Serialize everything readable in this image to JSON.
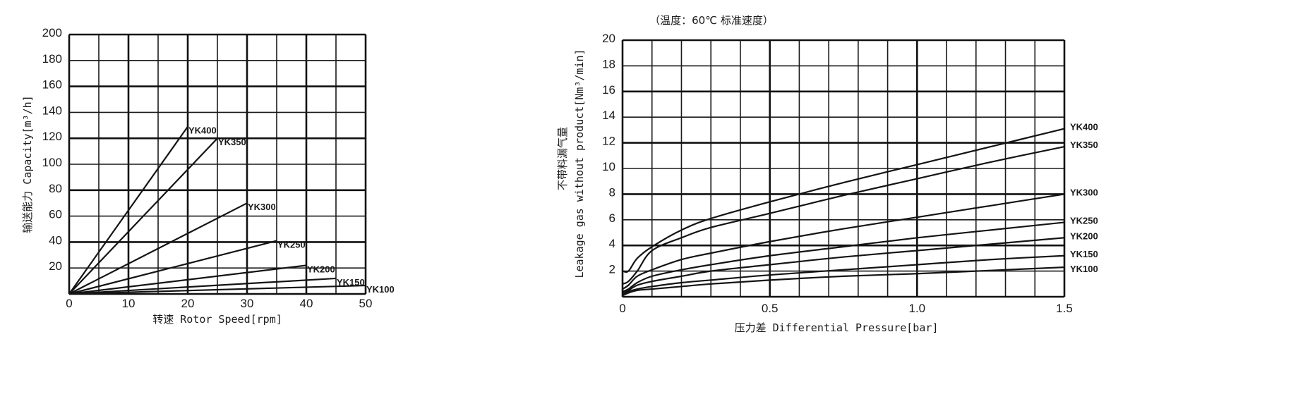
{
  "chart_data": [
    {
      "type": "line",
      "title": "",
      "xlabel": "转速 Rotor Speed[rpm]",
      "ylabel": "输送能力 Capacity[m³/h]",
      "xlim": [
        0,
        50
      ],
      "ylim": [
        0,
        200
      ],
      "xticks": [
        "0",
        "10",
        "20",
        "30",
        "40",
        "50"
      ],
      "yticks": [
        "20",
        "40",
        "60",
        "80",
        "100",
        "120",
        "140",
        "160",
        "180",
        "200"
      ],
      "grid": true,
      "series": [
        {
          "name": "YK400",
          "x": [
            0,
            20
          ],
          "y": [
            0,
            129
          ]
        },
        {
          "name": "YK350",
          "x": [
            0,
            25
          ],
          "y": [
            0,
            120
          ]
        },
        {
          "name": "YK300",
          "x": [
            0,
            30
          ],
          "y": [
            0,
            70
          ]
        },
        {
          "name": "YK250",
          "x": [
            0,
            35
          ],
          "y": [
            0,
            41
          ]
        },
        {
          "name": "YK200",
          "x": [
            0,
            40
          ],
          "y": [
            0,
            22
          ]
        },
        {
          "name": "YK150",
          "x": [
            0,
            45
          ],
          "y": [
            0,
            12
          ]
        },
        {
          "name": "YK100",
          "x": [
            0,
            50
          ],
          "y": [
            0,
            6.5
          ]
        }
      ]
    },
    {
      "type": "line",
      "title": "（温度：60℃ 标准速度）",
      "xlabel": "压力差 Differential Pressure[bar]",
      "ylabel_cn": "不带料漏气量",
      "ylabel": "Leakage gas without product[Nm³/min]",
      "xlim": [
        0,
        1.5
      ],
      "ylim": [
        0,
        20
      ],
      "xticks": [
        "0",
        "0.5",
        "1.0",
        "1.5"
      ],
      "yticks": [
        "2",
        "4",
        "6",
        "8",
        "10",
        "12",
        "14",
        "16",
        "18",
        "20"
      ],
      "grid": true,
      "x": [
        0,
        0.02,
        0.05,
        0.1,
        0.2,
        0.3,
        0.5,
        0.75,
        1.0,
        1.25,
        1.5
      ],
      "series": [
        {
          "name": "YK400",
          "values": [
            2,
            2,
            3,
            3.9,
            5.2,
            6.1,
            7.4,
            8.9,
            10.3,
            11.7,
            13.1
          ]
        },
        {
          "name": "YK350",
          "values": [
            1,
            1.2,
            2,
            3.6,
            4.6,
            5.4,
            6.5,
            7.9,
            9.2,
            10.5,
            11.7
          ]
        },
        {
          "name": "YK300",
          "values": [
            0.6,
            0.9,
            1.6,
            2.1,
            2.9,
            3.4,
            4.3,
            5.3,
            6.2,
            7.1,
            8
          ]
        },
        {
          "name": "YK250",
          "values": [
            0.4,
            0.6,
            1.1,
            1.6,
            2.1,
            2.5,
            3.2,
            3.9,
            4.6,
            5.2,
            5.8
          ]
        },
        {
          "name": "YK200",
          "values": [
            0.3,
            0.5,
            0.9,
            1.2,
            1.6,
            2,
            2.5,
            3.1,
            3.6,
            4.1,
            4.6
          ]
        },
        {
          "name": "YK150",
          "values": [
            0.2,
            0.4,
            0.6,
            0.8,
            1.1,
            1.3,
            1.7,
            2.1,
            2.5,
            2.9,
            3.2
          ]
        },
        {
          "name": "YK100",
          "values": [
            0.1,
            0.3,
            0.5,
            0.6,
            0.8,
            1.0,
            1.3,
            1.6,
            1.8,
            2.05,
            2.3
          ]
        }
      ]
    }
  ]
}
